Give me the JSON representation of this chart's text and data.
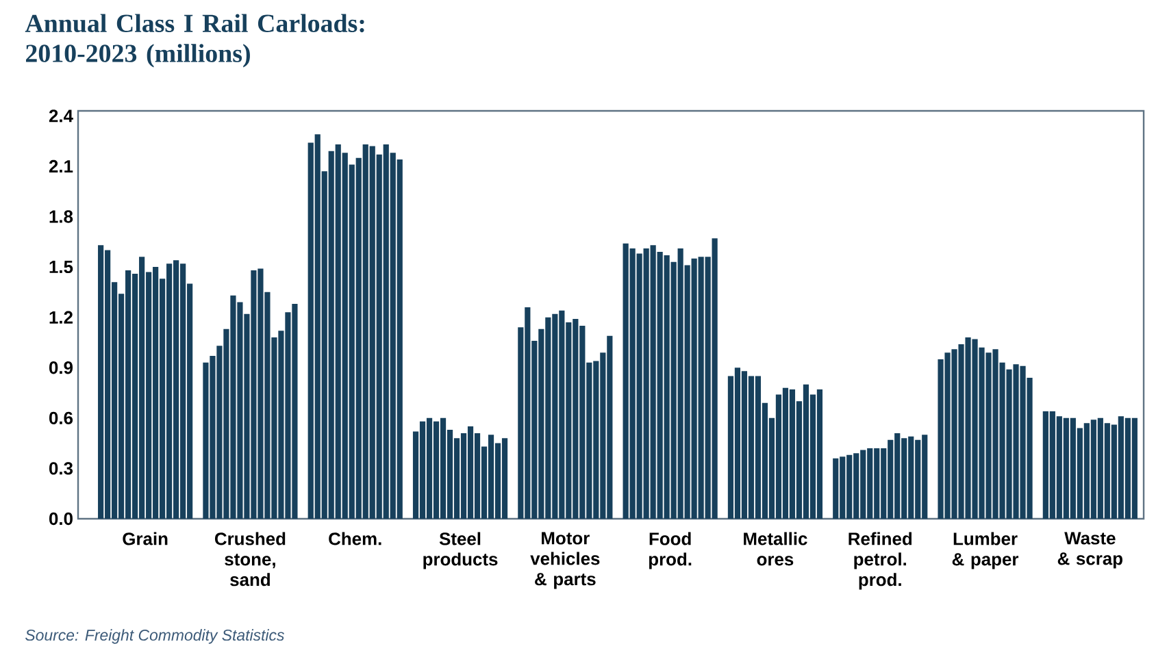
{
  "chart_data": {
    "type": "bar",
    "title": "Annual Class I Rail Carloads: 2010-2023 (millions)",
    "categories": [
      "Grain",
      "Crushed stone, sand",
      "Chem.",
      "Steel products",
      "Motor vehicles & parts",
      "Food prod.",
      "Metallic ores",
      "Refined petrol. prod.",
      "Lumber & paper",
      "Waste & scrap"
    ],
    "series": [
      {
        "color": "#17405c",
        "values": [
          1.63,
          0.93,
          2.24,
          0.52,
          1.14,
          1.64,
          0.85,
          0.36,
          0.95,
          0.64
        ]
      },
      {
        "color": "#17405c",
        "values": [
          1.6,
          0.97,
          2.29,
          0.58,
          1.26,
          1.61,
          0.9,
          0.37,
          0.99,
          0.64
        ]
      },
      {
        "color": "#17405c",
        "values": [
          1.41,
          1.03,
          2.07,
          0.6,
          1.06,
          1.58,
          0.88,
          0.38,
          1.01,
          0.61
        ]
      },
      {
        "color": "#17405c",
        "values": [
          1.34,
          1.13,
          2.19,
          0.58,
          1.13,
          1.61,
          0.85,
          0.39,
          1.04,
          0.6
        ]
      },
      {
        "color": "#17405c",
        "values": [
          1.48,
          1.33,
          2.23,
          0.6,
          1.2,
          1.63,
          0.85,
          0.41,
          1.08,
          0.6
        ]
      },
      {
        "color": "#17405c",
        "values": [
          1.46,
          1.29,
          2.18,
          0.53,
          1.22,
          1.59,
          0.69,
          0.42,
          1.07,
          0.54
        ]
      },
      {
        "color": "#17405c",
        "values": [
          1.56,
          1.22,
          2.11,
          0.48,
          1.24,
          1.57,
          0.6,
          0.42,
          1.02,
          0.57
        ]
      },
      {
        "color": "#17405c",
        "values": [
          1.47,
          1.48,
          2.15,
          0.51,
          1.17,
          1.53,
          0.74,
          0.42,
          0.99,
          0.59
        ]
      },
      {
        "color": "#17405c",
        "values": [
          1.5,
          1.49,
          2.23,
          0.55,
          1.19,
          1.61,
          0.78,
          0.47,
          1.01,
          0.6
        ]
      },
      {
        "color": "#17405c",
        "values": [
          1.43,
          1.35,
          2.22,
          0.51,
          1.15,
          1.51,
          0.77,
          0.51,
          0.93,
          0.57
        ]
      },
      {
        "color": "#17405c",
        "values": [
          1.52,
          1.08,
          2.17,
          0.43,
          0.93,
          1.55,
          0.7,
          0.48,
          0.89,
          0.56
        ]
      },
      {
        "color": "#17405c",
        "values": [
          1.54,
          1.12,
          2.23,
          0.5,
          0.94,
          1.56,
          0.8,
          0.49,
          0.92,
          0.61
        ]
      },
      {
        "color": "#17405c",
        "values": [
          1.52,
          1.23,
          2.18,
          0.45,
          0.99,
          1.56,
          0.74,
          0.47,
          0.91,
          0.6
        ]
      },
      {
        "color": "#17405c",
        "values": [
          1.4,
          1.28,
          2.14,
          0.48,
          1.09,
          1.67,
          0.77,
          0.5,
          0.84,
          0.6
        ]
      }
    ],
    "ylim": [
      0,
      2.43
    ],
    "yticks": [
      {
        "value": 0,
        "label": "0.0"
      },
      {
        "value": 0.3,
        "label": "0.3"
      },
      {
        "value": 0.6,
        "label": "0.6"
      },
      {
        "value": 0.9,
        "label": "0.9"
      },
      {
        "value": 1.2,
        "label": "1.2"
      },
      {
        "value": 1.5,
        "label": "1.5"
      },
      {
        "value": 1.8,
        "label": "1.8"
      },
      {
        "value": 2.1,
        "label": "2.1"
      },
      {
        "value": 2.4,
        "label": "2.4"
      }
    ],
    "annotations": [
      "Source: Freight Commodity Statistics"
    ]
  }
}
